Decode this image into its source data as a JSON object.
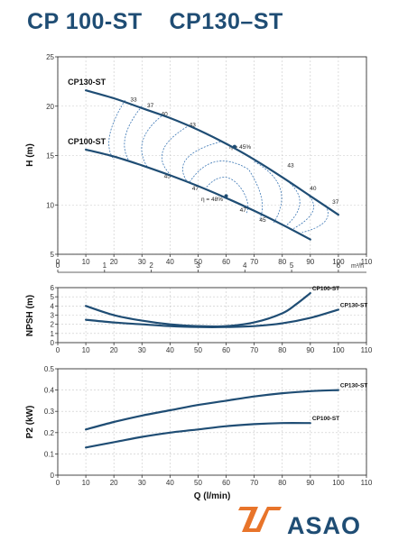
{
  "page": {
    "title": "CP 100-ST    CP130–ST",
    "brand": "ASAO",
    "colors": {
      "curve": "#1f4d74",
      "eff": "#3d78b5",
      "frame": "#333333",
      "grid": "#c8c8c8",
      "title": "#1f4d74",
      "logo_orange": "#e8742a"
    }
  },
  "chart_data": [
    {
      "type": "line",
      "id": "head",
      "ylabel": "H (m)",
      "xlim": [
        0,
        110
      ],
      "ylim": [
        5,
        25
      ],
      "xticks": [
        0,
        10,
        20,
        30,
        40,
        50,
        60,
        70,
        80,
        90,
        100,
        110
      ],
      "yticks": [
        5,
        10,
        15,
        20,
        25
      ],
      "secondary_x": {
        "unit": "m³/h",
        "ticks": [
          0,
          1,
          2,
          3,
          4,
          5,
          6
        ]
      },
      "grid": true,
      "series": [
        {
          "name": "CP130-ST",
          "x": [
            10,
            20,
            30,
            40,
            50,
            60,
            70,
            80,
            90,
            100
          ],
          "y": [
            21.6,
            20.8,
            19.8,
            18.8,
            17.6,
            16.2,
            14.6,
            12.8,
            10.9,
            9.0
          ]
        },
        {
          "name": "CP100-ST",
          "x": [
            10,
            20,
            30,
            40,
            50,
            60,
            70,
            80,
            90
          ],
          "y": [
            15.6,
            14.9,
            14.0,
            13.0,
            11.9,
            10.7,
            9.4,
            8.0,
            6.5
          ]
        }
      ],
      "efficiency_labels": [
        {
          "text": "33",
          "x": 27,
          "y": 20.5
        },
        {
          "text": "37",
          "x": 33,
          "y": 19.9
        },
        {
          "text": "40",
          "x": 38,
          "y": 19.0
        },
        {
          "text": "43",
          "x": 48,
          "y": 17.9
        },
        {
          "text": "η = 45%",
          "x": 65,
          "y": 15.7
        },
        {
          "text": "45",
          "x": 39,
          "y": 12.7
        },
        {
          "text": "47",
          "x": 49,
          "y": 11.5
        },
        {
          "text": "η = 48%",
          "x": 55,
          "y": 10.4
        },
        {
          "text": "47",
          "x": 66,
          "y": 9.3
        },
        {
          "text": "45",
          "x": 73,
          "y": 8.3
        },
        {
          "text": "43",
          "x": 83,
          "y": 13.8
        },
        {
          "text": "40",
          "x": 91,
          "y": 11.5
        },
        {
          "text": "37",
          "x": 99,
          "y": 10.1
        }
      ]
    },
    {
      "type": "line",
      "id": "npsh",
      "ylabel": "NPSH (m)",
      "xlim": [
        0,
        110
      ],
      "ylim": [
        0,
        6
      ],
      "xticks": [
        0,
        10,
        20,
        30,
        40,
        50,
        60,
        70,
        80,
        90,
        100,
        110
      ],
      "yticks": [
        0,
        1,
        2,
        3,
        4,
        5,
        6
      ],
      "grid": true,
      "series": [
        {
          "name": "CP100-ST",
          "x": [
            10,
            20,
            30,
            40,
            50,
            60,
            70,
            80,
            85,
            90
          ],
          "y": [
            4.0,
            3.0,
            2.4,
            2.0,
            1.8,
            1.8,
            2.2,
            3.2,
            4.2,
            5.4
          ]
        },
        {
          "name": "CP130-ST",
          "x": [
            10,
            20,
            30,
            40,
            50,
            60,
            70,
            80,
            90,
            100
          ],
          "y": [
            2.5,
            2.2,
            2.0,
            1.8,
            1.7,
            1.7,
            1.8,
            2.1,
            2.7,
            3.6
          ]
        }
      ]
    },
    {
      "type": "line",
      "id": "power",
      "ylabel": "P2 (kW)",
      "xlabel": "Q (l/min)",
      "xlim": [
        0,
        110
      ],
      "ylim": [
        0,
        0.5
      ],
      "xticks": [
        0,
        10,
        20,
        30,
        40,
        50,
        60,
        70,
        80,
        90,
        100,
        110
      ],
      "yticks": [
        0,
        0.1,
        0.2,
        0.3,
        0.4,
        0.5
      ],
      "grid": true,
      "series": [
        {
          "name": "CP130-ST",
          "x": [
            10,
            20,
            30,
            40,
            50,
            60,
            70,
            80,
            90,
            100
          ],
          "y": [
            0.215,
            0.25,
            0.28,
            0.305,
            0.33,
            0.35,
            0.37,
            0.385,
            0.395,
            0.4
          ]
        },
        {
          "name": "CP100-ST",
          "x": [
            10,
            20,
            30,
            40,
            50,
            60,
            70,
            80,
            90
          ],
          "y": [
            0.13,
            0.155,
            0.18,
            0.2,
            0.215,
            0.23,
            0.24,
            0.245,
            0.245
          ]
        }
      ]
    }
  ]
}
